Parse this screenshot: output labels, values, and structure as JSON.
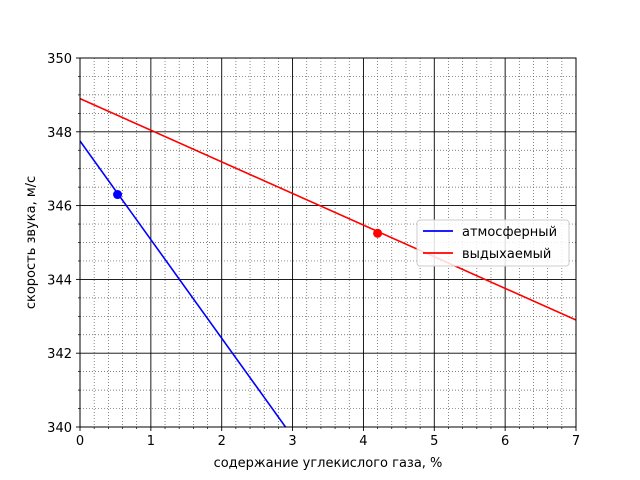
{
  "chart_data": {
    "type": "line",
    "xlabel": "содержание углекислого газа, %",
    "ylabel": "скорость звука, м/с",
    "xlim": [
      0,
      7
    ],
    "ylim": [
      340,
      350
    ],
    "x_ticks": [
      "0",
      "1",
      "2",
      "3",
      "4",
      "5",
      "6",
      "7"
    ],
    "y_ticks": [
      "340",
      "342",
      "344",
      "346",
      "348",
      "350"
    ],
    "grid": {
      "major": true,
      "minor": true,
      "minor_style": "dotted"
    },
    "legend_position": "center-right",
    "series": [
      {
        "name": "атмосферный",
        "color": "#0000ff",
        "line": {
          "x": [
            0,
            2.9
          ],
          "y": [
            347.75,
            340
          ]
        },
        "marker": {
          "x": 0.53,
          "y": 346.3
        }
      },
      {
        "name": "выдыхаемый",
        "color": "#ff0000",
        "line": {
          "x": [
            0,
            7
          ],
          "y": [
            348.9,
            342.9
          ]
        },
        "marker": {
          "x": 4.2,
          "y": 345.25
        }
      }
    ]
  }
}
